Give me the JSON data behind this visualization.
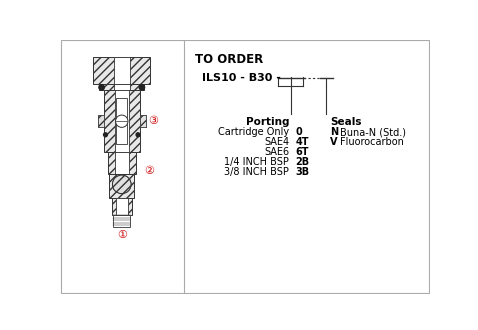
{
  "bg_color": "#ffffff",
  "text_color": "#000000",
  "line_color": "#333333",
  "title": "TO ORDER",
  "part_number": "ILS10 - B30 -",
  "porting_header": "Porting",
  "porting_items": [
    [
      "Cartridge Only",
      "0"
    ],
    [
      "SAE4",
      "4T"
    ],
    [
      "SAE6",
      "6T"
    ],
    [
      "1/4 INCH BSP",
      "2B"
    ],
    [
      "3/8 INCH BSP",
      "3B"
    ]
  ],
  "seals_header": "Seals",
  "seals_items": [
    [
      "N",
      "Buna-N (Std.)"
    ],
    [
      "V",
      "Fluorocarbon"
    ]
  ],
  "red_color": "#cc0000"
}
